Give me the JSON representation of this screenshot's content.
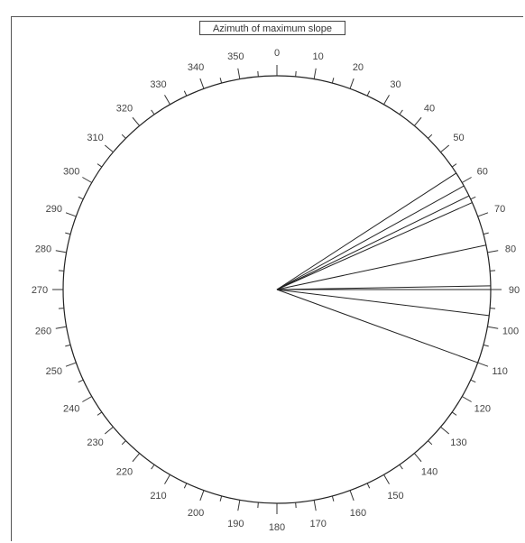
{
  "chart_data": {
    "type": "polar-rose",
    "title": "Azimuth of maximum slope",
    "angle_unit": "degrees",
    "angle_range": [
      0,
      360
    ],
    "tick_step_minor": 5,
    "label_step": 10,
    "tick_labels": [
      "0",
      "10",
      "20",
      "30",
      "40",
      "50",
      "60",
      "70",
      "80",
      "90",
      "100",
      "110",
      "120",
      "130",
      "140",
      "150",
      "160",
      "170",
      "180",
      "190",
      "200",
      "210",
      "220",
      "230",
      "240",
      "250",
      "260",
      "270",
      "280",
      "290",
      "300",
      "310",
      "320",
      "330",
      "340",
      "350"
    ],
    "directions_deg": [
      57,
      61,
      64,
      66,
      78,
      89,
      90,
      97,
      110
    ],
    "line_color": "#222222"
  }
}
